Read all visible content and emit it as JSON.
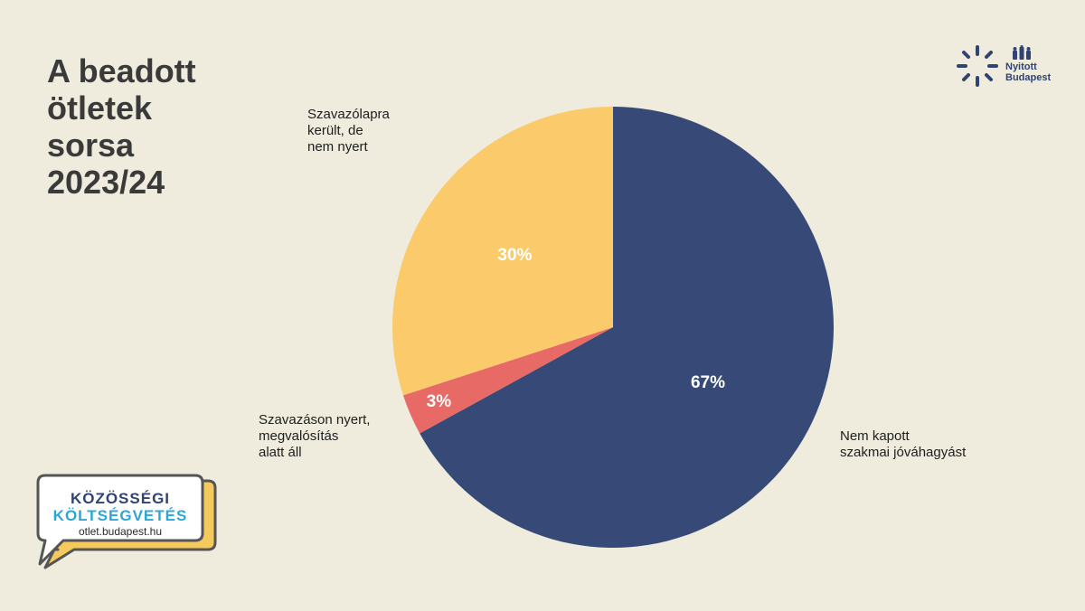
{
  "title": {
    "lines": [
      "A beadott",
      "ötletek",
      "sorsa",
      "2023/24"
    ]
  },
  "brand": {
    "line1": "Nyitott",
    "line2": "Budapest",
    "color": "#2f4472"
  },
  "badge": {
    "line1": "KÖZÖSSÉGI",
    "line2": "KÖLTSÉGVETÉS",
    "url": "otlet.budapest.hu",
    "colors": {
      "dark": "#2f4472",
      "accent": "#2aa7d8",
      "shadow": "#f5c95c"
    }
  },
  "chart_data": {
    "type": "pie",
    "start": "12 o'clock",
    "direction": "clockwise",
    "slices": [
      {
        "label": "Nem kapott szakmai jóváhagyást",
        "value": 67,
        "value_label": "67%",
        "color": "#364977",
        "label_lines": [
          "Nem kapott",
          "szakmai jóváhagyást"
        ]
      },
      {
        "label": "Szavazáson nyert, megvalósítás alatt áll",
        "value": 3,
        "value_label": "3%",
        "color": "#e86a66",
        "label_lines": [
          "Szavazáson nyert,",
          "megvalósítás",
          "alatt áll"
        ]
      },
      {
        "label": "Szavazólapra került, de nem nyert",
        "value": 30,
        "value_label": "30%",
        "color": "#fbcb6b",
        "label_lines": [
          "Szavazólapra",
          "került, de",
          "nem nyert"
        ]
      }
    ]
  }
}
